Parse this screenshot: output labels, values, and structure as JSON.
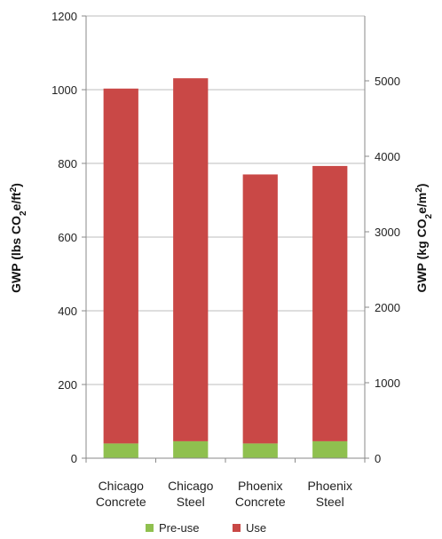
{
  "chart_data": {
    "type": "bar",
    "stacked": true,
    "categories": [
      [
        "Chicago",
        "Concrete"
      ],
      [
        "Chicago",
        "Steel"
      ],
      [
        "Phoenix",
        "Concrete"
      ],
      [
        "Phoenix",
        "Steel"
      ]
    ],
    "series": [
      {
        "name": "Pre-use",
        "color": "#8fc04f",
        "values": [
          40,
          46,
          40,
          46
        ]
      },
      {
        "name": "Use",
        "color": "#c94846",
        "values": [
          963,
          985,
          730,
          747
        ]
      }
    ],
    "ylim": [
      0,
      1200
    ],
    "yticks": [
      "0",
      "200",
      "400",
      "600",
      "800",
      "1000",
      "1200"
    ],
    "ylabel": {
      "main": "GWP (lbs CO",
      "sub": "2",
      "mid": "e/ft",
      "sup": "2",
      "end": ")"
    },
    "y2lim": [
      0,
      5859
    ],
    "y2ticks": [
      "0",
      "1000",
      "2000",
      "3000",
      "4000",
      "5000"
    ],
    "y2label": {
      "main": "GWP  (kg CO",
      "sub": "2",
      "mid": "e/m",
      "sup": "2",
      "end": ")"
    },
    "grid": true,
    "legend_position": "bottom"
  }
}
